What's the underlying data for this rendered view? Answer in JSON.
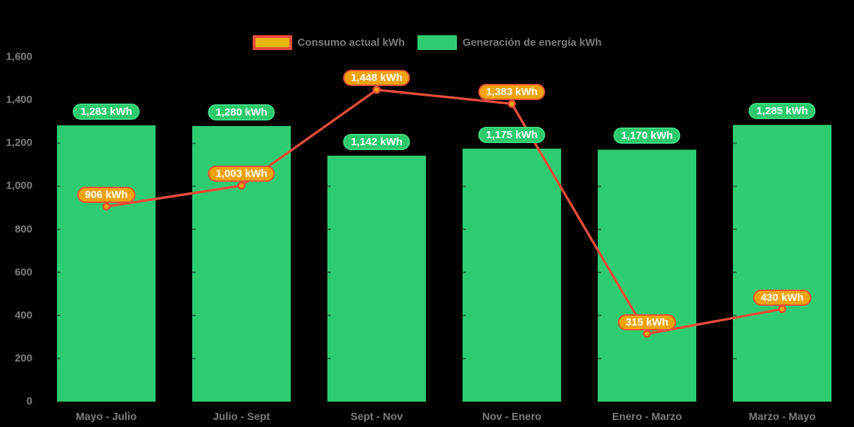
{
  "chart_data": {
    "type": "bar",
    "categories": [
      "Mayo - Julio",
      "Julio - Sept",
      "Sept - Nov",
      "Nov - Enero",
      "Enero - Marzo",
      "Marzo - Mayo"
    ],
    "series": [
      {
        "name": "Consumo actual kWh",
        "type": "line",
        "values": [
          906,
          1003,
          1448,
          1383,
          315,
          430
        ]
      },
      {
        "name": "Generación de energía kWh",
        "type": "bar",
        "values": [
          1283,
          1280,
          1142,
          1175,
          1170,
          1285
        ]
      }
    ],
    "title": "",
    "xlabel": "",
    "ylabel": "",
    "ylim": [
      0,
      1600
    ],
    "ytick_step": 200,
    "ytick_labels": [
      "0",
      "200",
      "400",
      "600",
      "800",
      "1,000",
      "1,200",
      "1,400",
      "1,600"
    ],
    "value_suffix": " kWh",
    "grid": false,
    "legend_position": "top"
  },
  "colors": {
    "background": "#000000",
    "bar_fill": "#2ecc71",
    "bar_label_fill": "#2dc96e",
    "bar_label_border": "#3edd82",
    "line_stroke": "#e74c3c",
    "marker_fill": "#f2a60d",
    "marker_ring": "#e74c3c",
    "line_label_fill": "#f0a30c",
    "line_label_border": "#e8513a",
    "legend_consumption_fill": "#e9b70e",
    "legend_consumption_border": "#e74c3c",
    "legend_generation_fill": "#2ecc71",
    "axis_text": "#7d7d7d",
    "legend_text": "#7a7a7a",
    "label_text": "#ffffff",
    "bar_tick_stub": "rgba(0,0,0,0.45)"
  }
}
